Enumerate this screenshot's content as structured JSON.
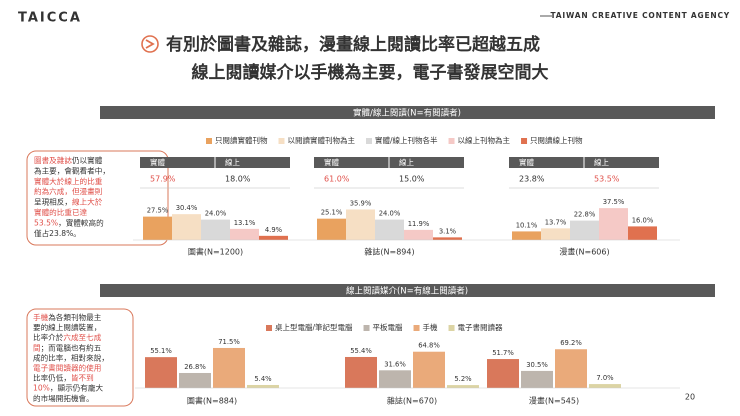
{
  "header": {
    "logo": "TAICCA",
    "agency": "TAIWAN CREATIVE CONTENT AGENCY",
    "title_lines": [
      "有別於圖書及雜誌，漫畫線上閱讀比率已超越五成",
      "線上閱讀媒介以手機為主要，電子書發展空間大"
    ]
  },
  "page_number": "20",
  "notes": [
    {
      "lines": [
        [
          {
            "text": "圖書及雜誌",
            "em": true
          },
          {
            "text": "仍以實體",
            "em": false
          }
        ],
        [
          {
            "text": "為主要，會觀看者中，",
            "em": false
          }
        ],
        [
          {
            "text": "實體大於線上的比重",
            "em": true
          }
        ],
        [
          {
            "text": "約為六成，但漫畫則",
            "em": true
          }
        ],
        [
          {
            "text": "呈現相反，",
            "em": false
          },
          {
            "text": "線上大於",
            "em": true
          }
        ],
        [
          {
            "text": "實體的比重已達",
            "em": true
          }
        ],
        [
          {
            "text": "53.5%",
            "em": true
          },
          {
            "text": "，實體較高的",
            "em": false
          }
        ],
        [
          {
            "text": "僅占23.8%。",
            "em": false
          }
        ]
      ]
    },
    {
      "lines": [
        [
          {
            "text": "手機",
            "em": true
          },
          {
            "text": "為各類刊物最主",
            "em": false
          }
        ],
        [
          {
            "text": "要的線上閱讀裝置，",
            "em": false
          }
        ],
        [
          {
            "text": "比率介於",
            "em": false
          },
          {
            "text": "六成至七成",
            "em": true
          }
        ],
        [
          {
            "text": "間",
            "em": true
          },
          {
            "text": "；而電腦也有約五",
            "em": false
          }
        ],
        [
          {
            "text": "成的比率，相對來說，",
            "em": false
          }
        ],
        [
          {
            "text": "電子書閱讀器的使用",
            "em": true
          }
        ],
        [
          {
            "text": "比率仍低，",
            "em": false
          },
          {
            "text": "皆不到",
            "em": true
          }
        ],
        [
          {
            "text": "10%",
            "em": true
          },
          {
            "text": "，顯示仍有龐大",
            "em": false
          }
        ],
        [
          {
            "text": "的市場開拓機會。",
            "em": false
          }
        ]
      ]
    }
  ],
  "chart_data": [
    {
      "type": "bar",
      "title": "實體/線上閱讀(N=有閱讀者)",
      "categories": [
        "圖書(N=1200)",
        "雜誌(N=894)",
        "漫畫(N=606)"
      ],
      "series": [
        {
          "name": "只閱讀實體刊物",
          "color": "#e9a25f",
          "values": [
            27.5,
            25.1,
            10.1
          ],
          "value_labels": [
            "27.5%",
            "25.1%",
            "10.1%"
          ]
        },
        {
          "name": "以閱讀實體刊物為主",
          "color": "#f6dfc4",
          "values": [
            30.4,
            35.9,
            13.7
          ],
          "value_labels": [
            "30.4%",
            "35.9%",
            "13.7%"
          ]
        },
        {
          "name": "實體/線上刊物各半",
          "color": "#d9d9d9",
          "values": [
            24.0,
            24.0,
            22.8
          ],
          "value_labels": [
            "24.0%",
            "24.0%",
            "22.8%"
          ]
        },
        {
          "name": "以線上刊物為主",
          "color": "#f5c9c6",
          "values": [
            13.1,
            11.9,
            37.5
          ],
          "value_labels": [
            "13.1%",
            "11.9%",
            "37.5%"
          ]
        },
        {
          "name": "只閱讀線上刊物",
          "color": "#e0714f",
          "values": [
            4.9,
            3.1,
            16.0
          ],
          "value_labels": [
            "4.9%",
            "3.1%",
            "16.0%"
          ]
        }
      ],
      "group_tables": [
        {
          "headers": [
            "實體",
            "線上"
          ],
          "cells": [
            "57.9%",
            "18.0%"
          ],
          "highlight": 0
        },
        {
          "headers": [
            "實體",
            "線上"
          ],
          "cells": [
            "61.0%",
            "15.0%"
          ],
          "highlight": 0
        },
        {
          "headers": [
            "實體",
            "線上"
          ],
          "cells": [
            "23.8%",
            "53.5%"
          ],
          "highlight": 1
        }
      ]
    },
    {
      "type": "bar",
      "title": "線上閱讀媒介(N=有線上閱讀者)",
      "categories": [
        "圖書(N=884)",
        "雜誌(N=670)",
        "漫畫(N=545)"
      ],
      "series": [
        {
          "name": "桌上型電腦/筆記型電腦",
          "color": "#d9785b",
          "values": [
            55.1,
            55.4,
            51.7
          ],
          "value_labels": [
            "55.1%",
            "55.4%",
            "51.7%"
          ]
        },
        {
          "name": "平板電腦",
          "color": "#bdb5ad",
          "values": [
            26.8,
            31.6,
            30.5
          ],
          "value_labels": [
            "26.8%",
            "31.6%",
            "30.5%"
          ]
        },
        {
          "name": "手機",
          "color": "#eaaa7a",
          "values": [
            71.5,
            64.8,
            69.2
          ],
          "value_labels": [
            "71.5%",
            "64.8%",
            "69.2%"
          ]
        },
        {
          "name": "電子書閱讀器",
          "color": "#dcd4a4",
          "values": [
            5.4,
            5.2,
            7.0
          ],
          "value_labels": [
            "5.4%",
            "5.2%",
            "7.0%"
          ]
        }
      ]
    }
  ]
}
